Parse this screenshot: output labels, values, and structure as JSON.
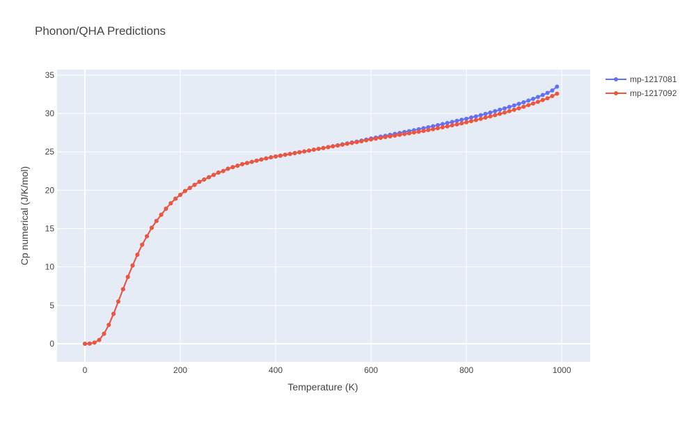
{
  "chart_data": {
    "type": "line",
    "title": "Phonon/QHA Predictions",
    "x_label": "Temperature (K)",
    "y_label": "Cp numerical (J/K/mol)",
    "x": [
      0,
      10,
      20,
      30,
      40,
      50,
      60,
      70,
      80,
      90,
      100,
      110,
      120,
      130,
      140,
      150,
      160,
      170,
      180,
      190,
      200,
      210,
      220,
      230,
      240,
      250,
      260,
      270,
      280,
      290,
      300,
      310,
      320,
      330,
      340,
      350,
      360,
      370,
      380,
      390,
      400,
      410,
      420,
      430,
      440,
      450,
      460,
      470,
      480,
      490,
      500,
      510,
      520,
      530,
      540,
      550,
      560,
      570,
      580,
      590,
      600,
      610,
      620,
      630,
      640,
      650,
      660,
      670,
      680,
      690,
      700,
      710,
      720,
      730,
      740,
      750,
      760,
      770,
      780,
      790,
      800,
      810,
      820,
      830,
      840,
      850,
      860,
      870,
      880,
      890,
      900,
      910,
      920,
      930,
      940,
      950,
      960,
      970,
      980,
      990
    ],
    "series": [
      {
        "name": "mp-1217081",
        "color": "#636efa",
        "values": [
          0,
          0.02,
          0.15,
          0.5,
          1.3,
          2.45,
          3.9,
          5.5,
          7.1,
          8.7,
          10.2,
          11.6,
          12.9,
          14.0,
          15.1,
          16.0,
          16.8,
          17.6,
          18.3,
          18.9,
          19.4,
          19.9,
          20.3,
          20.7,
          21.1,
          21.4,
          21.7,
          22.0,
          22.3,
          22.5,
          22.8,
          23.0,
          23.2,
          23.4,
          23.55,
          23.7,
          23.85,
          24.0,
          24.15,
          24.3,
          24.4,
          24.5,
          24.62,
          24.73,
          24.84,
          24.95,
          25.06,
          25.17,
          25.28,
          25.39,
          25.5,
          25.62,
          25.74,
          25.86,
          25.98,
          26.1,
          26.22,
          26.34,
          26.46,
          26.6,
          26.74,
          26.86,
          26.98,
          27.1,
          27.22,
          27.34,
          27.46,
          27.58,
          27.7,
          27.82,
          27.95,
          28.08,
          28.21,
          28.34,
          28.48,
          28.62,
          28.76,
          28.9,
          29.04,
          29.18,
          29.32,
          29.47,
          29.62,
          29.78,
          29.95,
          30.12,
          30.3,
          30.48,
          30.67,
          30.86,
          31.05,
          31.25,
          31.46,
          31.68,
          31.91,
          32.15,
          32.41,
          32.68,
          33.0,
          33.5
        ]
      },
      {
        "name": "mp-1217092",
        "color": "#ef553b",
        "values": [
          0,
          0.02,
          0.15,
          0.5,
          1.3,
          2.45,
          3.9,
          5.5,
          7.1,
          8.7,
          10.2,
          11.6,
          12.9,
          14.0,
          15.1,
          16.0,
          16.8,
          17.6,
          18.3,
          18.9,
          19.4,
          19.9,
          20.3,
          20.7,
          21.1,
          21.4,
          21.7,
          22.0,
          22.3,
          22.5,
          22.8,
          23.0,
          23.2,
          23.4,
          23.55,
          23.7,
          23.85,
          24.0,
          24.15,
          24.3,
          24.4,
          24.5,
          24.62,
          24.73,
          24.84,
          24.95,
          25.06,
          25.17,
          25.28,
          25.39,
          25.5,
          25.61,
          25.72,
          25.83,
          25.94,
          26.05,
          26.16,
          26.27,
          26.38,
          26.5,
          26.62,
          26.72,
          26.82,
          26.92,
          27.02,
          27.12,
          27.22,
          27.32,
          27.42,
          27.52,
          27.62,
          27.73,
          27.84,
          27.96,
          28.08,
          28.2,
          28.32,
          28.45,
          28.58,
          28.71,
          28.85,
          29.0,
          29.15,
          29.3,
          29.46,
          29.62,
          29.78,
          29.95,
          30.12,
          30.3,
          30.48,
          30.68,
          30.88,
          31.09,
          31.3,
          31.52,
          31.75,
          31.98,
          32.27,
          32.58
        ]
      }
    ],
    "xlim": [
      -58.4,
      1059.6
    ],
    "ylim": [
      -2.36,
      35.72
    ],
    "xticks": [
      0,
      200,
      400,
      600,
      800,
      1000
    ],
    "yticks": [
      0,
      5,
      10,
      15,
      20,
      25,
      30,
      35
    ],
    "grid": true,
    "legend": "top-right"
  }
}
